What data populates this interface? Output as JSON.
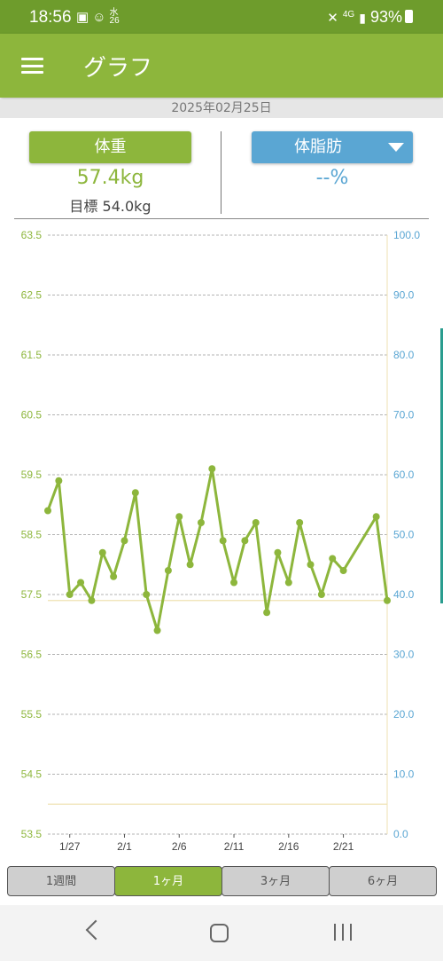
{
  "status_bar": {
    "time": "18:56",
    "left_icons": [
      "image-icon",
      "face-icon",
      "weather-icon"
    ],
    "weather_small": "水\n26",
    "network": "4G",
    "battery": "93%"
  },
  "app_bar": {
    "title": "グラフ",
    "menu_icon": "hamburger-icon"
  },
  "date": "2025年02月25日",
  "weight_panel": {
    "button_label": "体重",
    "value": "57.4kg",
    "goal": "目標 54.0kg"
  },
  "fat_panel": {
    "button_label": "体脂肪",
    "value": "--%"
  },
  "colors": {
    "green": "#8db63c",
    "blue": "#5aa6d3",
    "status_green": "#6e9c2c",
    "goal_line": "#efe2b3"
  },
  "chart_data": {
    "type": "line",
    "left_axis": {
      "min": 53.5,
      "max": 63.5,
      "ticks": [
        "63.5",
        "62.5",
        "61.5",
        "60.5",
        "59.5",
        "58.5",
        "57.5",
        "56.5",
        "55.5",
        "54.5",
        "53.5"
      ]
    },
    "right_axis": {
      "min": 0,
      "max": 100,
      "ticks": [
        "100.0",
        "90.0",
        "80.0",
        "70.0",
        "60.0",
        "50.0",
        "40.0",
        "30.0",
        "20.0",
        "10.0",
        "0.0"
      ]
    },
    "x_labels": [
      "1/27",
      "2/1",
      "2/6",
      "2/11",
      "2/16",
      "2/21"
    ],
    "x_label_days": [
      2,
      7,
      12,
      17,
      22,
      27
    ],
    "x_range_days": [
      0,
      31
    ],
    "weight_series": {
      "days": [
        0,
        1,
        2,
        3,
        4,
        5,
        6,
        7,
        8,
        9,
        10,
        11,
        12,
        13,
        14,
        15,
        16,
        17,
        18,
        19,
        20,
        21,
        22,
        23,
        24,
        25,
        26,
        27,
        30,
        31
      ],
      "values": [
        58.9,
        59.4,
        57.5,
        57.7,
        57.4,
        58.2,
        57.8,
        58.4,
        59.2,
        57.5,
        56.9,
        57.9,
        58.8,
        58.0,
        58.7,
        59.6,
        58.4,
        57.7,
        58.4,
        58.7,
        57.2,
        58.2,
        57.7,
        58.7,
        58.0,
        57.5,
        58.1,
        57.9,
        58.8,
        57.4
      ]
    },
    "current_weight_line": 57.4,
    "goal_line": 54.0,
    "grid": true
  },
  "range_tabs": [
    {
      "label": "1週間",
      "active": false
    },
    {
      "label": "1ヶ月",
      "active": true
    },
    {
      "label": "3ヶ月",
      "active": false
    },
    {
      "label": "6ヶ月",
      "active": false
    }
  ],
  "nav_bar": [
    "back-icon",
    "home-icon",
    "recents-icon"
  ]
}
